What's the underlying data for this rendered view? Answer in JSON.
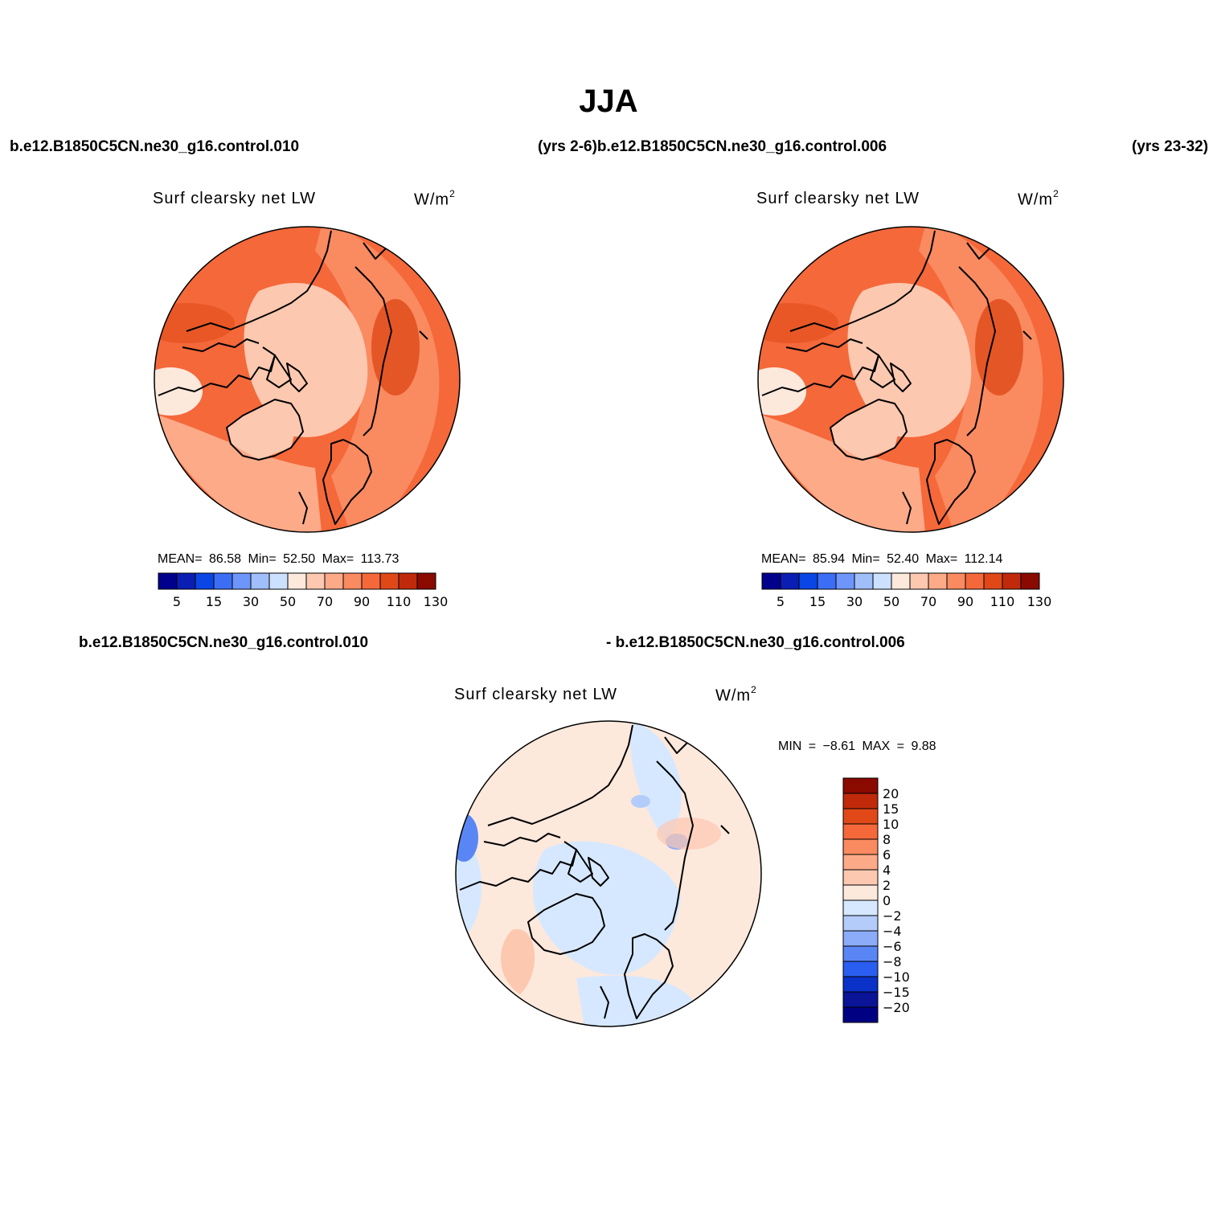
{
  "main_title": "JJA",
  "case_labels": {
    "case_a": "b.e12.B1850C5CN.ne30_g16.control.010",
    "years_a": "(yrs 2-6)",
    "case_b": "b.e12.B1850C5CN.ne30_g16.control.006",
    "years_b": "(yrs 23-32)",
    "diff_a": "b.e12.B1850C5CN.ne30_g16.control.010",
    "diff_b": "- b.e12.B1850C5CN.ne30_g16.control.006"
  },
  "chart_data": [
    {
      "type": "heatmap",
      "projection": "polar stereographic (north)",
      "title": "Surf clearsky net LW",
      "units": "W/m",
      "units_exp": "2",
      "stats": {
        "mean_label": "MEAN=",
        "mean": "86.58",
        "min_label": "Min=",
        "min": "52.50",
        "max_label": "Max=",
        "max": "113.73"
      },
      "colorbar": {
        "levels": [
          5,
          10,
          15,
          20,
          30,
          40,
          50,
          60,
          70,
          80,
          90,
          100,
          110,
          120,
          130
        ],
        "tick_labels": [
          "5",
          "15",
          "30",
          "50",
          "70",
          "90",
          "110",
          "130"
        ],
        "colors": [
          "#00008c",
          "#0a1eb4",
          "#0a46e6",
          "#3c6ef5",
          "#6e96fa",
          "#a0befa",
          "#cce0ff",
          "#fde8dc",
          "#fdc8b0",
          "#fcaa88",
          "#fa8a60",
          "#f4683a",
          "#e04818",
          "#c02a0a",
          "#8a0a00"
        ]
      },
      "dominant_colors": {
        "ocean_ring": "#f4683a",
        "arctic_basin": "#fdc8b0",
        "eurasia": "#fa8a60",
        "greenland": "#fdc8b0"
      }
    },
    {
      "type": "heatmap",
      "projection": "polar stereographic (north)",
      "title": "Surf clearsky net LW",
      "units": "W/m",
      "units_exp": "2",
      "stats": {
        "mean_label": "MEAN=",
        "mean": "85.94",
        "min_label": "Min=",
        "min": "52.40",
        "max_label": "Max=",
        "max": "112.14"
      },
      "colorbar": {
        "levels": [
          5,
          10,
          15,
          20,
          30,
          40,
          50,
          60,
          70,
          80,
          90,
          100,
          110,
          120,
          130
        ],
        "tick_labels": [
          "5",
          "15",
          "30",
          "50",
          "70",
          "90",
          "110",
          "130"
        ],
        "colors": [
          "#00008c",
          "#0a1eb4",
          "#0a46e6",
          "#3c6ef5",
          "#6e96fa",
          "#a0befa",
          "#cce0ff",
          "#fde8dc",
          "#fdc8b0",
          "#fcaa88",
          "#fa8a60",
          "#f4683a",
          "#e04818",
          "#c02a0a",
          "#8a0a00"
        ]
      },
      "dominant_colors": {
        "ocean_ring": "#f4683a",
        "arctic_basin": "#fdc8b0",
        "eurasia": "#fa8a60",
        "greenland": "#fdc8b0"
      }
    },
    {
      "type": "heatmap",
      "projection": "polar stereographic (north)",
      "title": "Surf clearsky net LW",
      "units": "W/m",
      "units_exp": "2",
      "stats": {
        "min_label": "MIN =",
        "min": "−8.61",
        "max_label": "MAX =",
        "max": "9.88"
      },
      "colorbar": {
        "orientation": "vertical",
        "tick_labels": [
          "20",
          "15",
          "10",
          "8",
          "6",
          "4",
          "2",
          "0",
          "−2",
          "−4",
          "−6",
          "−8",
          "−10",
          "−15",
          "−20"
        ],
        "colors": [
          "#8a0a00",
          "#c02a0a",
          "#e04818",
          "#f4683a",
          "#fa8a60",
          "#fcaa88",
          "#fdc8b0",
          "#fde8dc",
          "#d6e8ff",
          "#b4ccfa",
          "#8cacfa",
          "#5a86f5",
          "#2a5ef0",
          "#0a32c8",
          "#0a1496",
          "#000082"
        ]
      },
      "dominant_colors": {
        "background": "#fde8dc",
        "negative_area": "#d6e8ff",
        "negative_strong": "#5a86f5",
        "positive_area": "#fcc8b0"
      }
    }
  ]
}
